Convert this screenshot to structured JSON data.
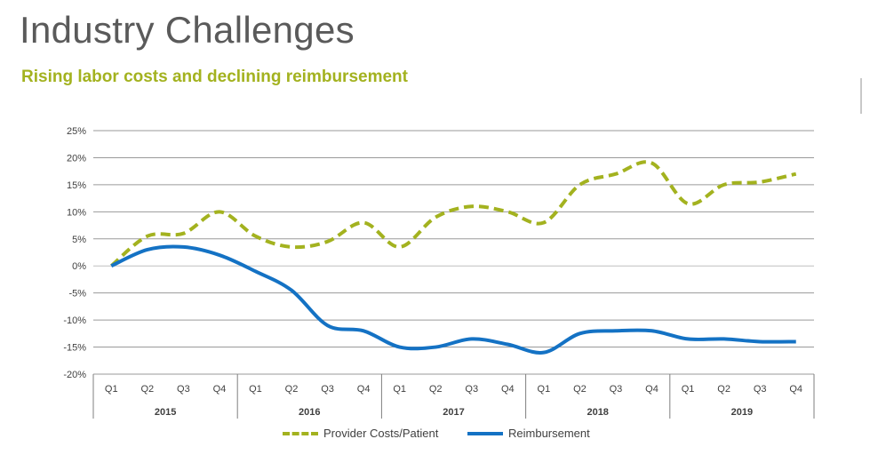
{
  "header": {
    "title": "Industry Challenges",
    "subtitle": "Rising labor costs and declining reimbursement"
  },
  "legend": {
    "items": [
      {
        "label": "Provider Costs/Patient",
        "color": "#a3b21f",
        "style": "dashed"
      },
      {
        "label": "Reimbursement",
        "color": "#1472c4",
        "style": "solid"
      }
    ]
  },
  "chart_data": {
    "type": "line",
    "title": "",
    "xlabel": "",
    "ylabel": "",
    "ylim": [
      -20,
      25
    ],
    "y_ticks": [
      -20,
      -15,
      -10,
      -5,
      0,
      5,
      10,
      15,
      20,
      25
    ],
    "y_tick_labels": [
      "-20%",
      "-15%",
      "-10%",
      "-5%",
      "0%",
      "5%",
      "10%",
      "15%",
      "20%",
      "25%"
    ],
    "grid": true,
    "legend_position": "bottom",
    "categories": [
      "2015 Q1",
      "2015 Q2",
      "2015 Q3",
      "2015 Q4",
      "2016 Q1",
      "2016 Q2",
      "2016 Q3",
      "2016 Q4",
      "2017 Q1",
      "2017 Q2",
      "2017 Q3",
      "2017 Q4",
      "2018 Q1",
      "2018 Q2",
      "2018 Q3",
      "2018 Q4",
      "2019 Q1",
      "2019 Q2",
      "2019 Q3",
      "2019 Q4"
    ],
    "quarter_labels": [
      "Q1",
      "Q2",
      "Q3",
      "Q4",
      "Q1",
      "Q2",
      "Q3",
      "Q4",
      "Q1",
      "Q2",
      "Q3",
      "Q4",
      "Q1",
      "Q2",
      "Q3",
      "Q4",
      "Q1",
      "Q2",
      "Q3",
      "Q4"
    ],
    "year_labels": [
      "2015",
      "2016",
      "2017",
      "2018",
      "2019"
    ],
    "series": [
      {
        "name": "Provider Costs/Patient",
        "color": "#a3b21f",
        "dash": true,
        "values": [
          0,
          5.5,
          6,
          10,
          5.5,
          3.5,
          4.5,
          8,
          3.5,
          9,
          11,
          10,
          8,
          15,
          17,
          19,
          11.5,
          15,
          15.5,
          17
        ]
      },
      {
        "name": "Reimbursement",
        "color": "#1472c4",
        "dash": false,
        "values": [
          0,
          3,
          3.5,
          2,
          -1,
          -4.5,
          -11,
          -12,
          -15,
          -15,
          -13.5,
          -14.5,
          -16,
          -12.5,
          -12,
          -12,
          -13.5,
          -13.5,
          -14,
          -14
        ]
      }
    ]
  }
}
